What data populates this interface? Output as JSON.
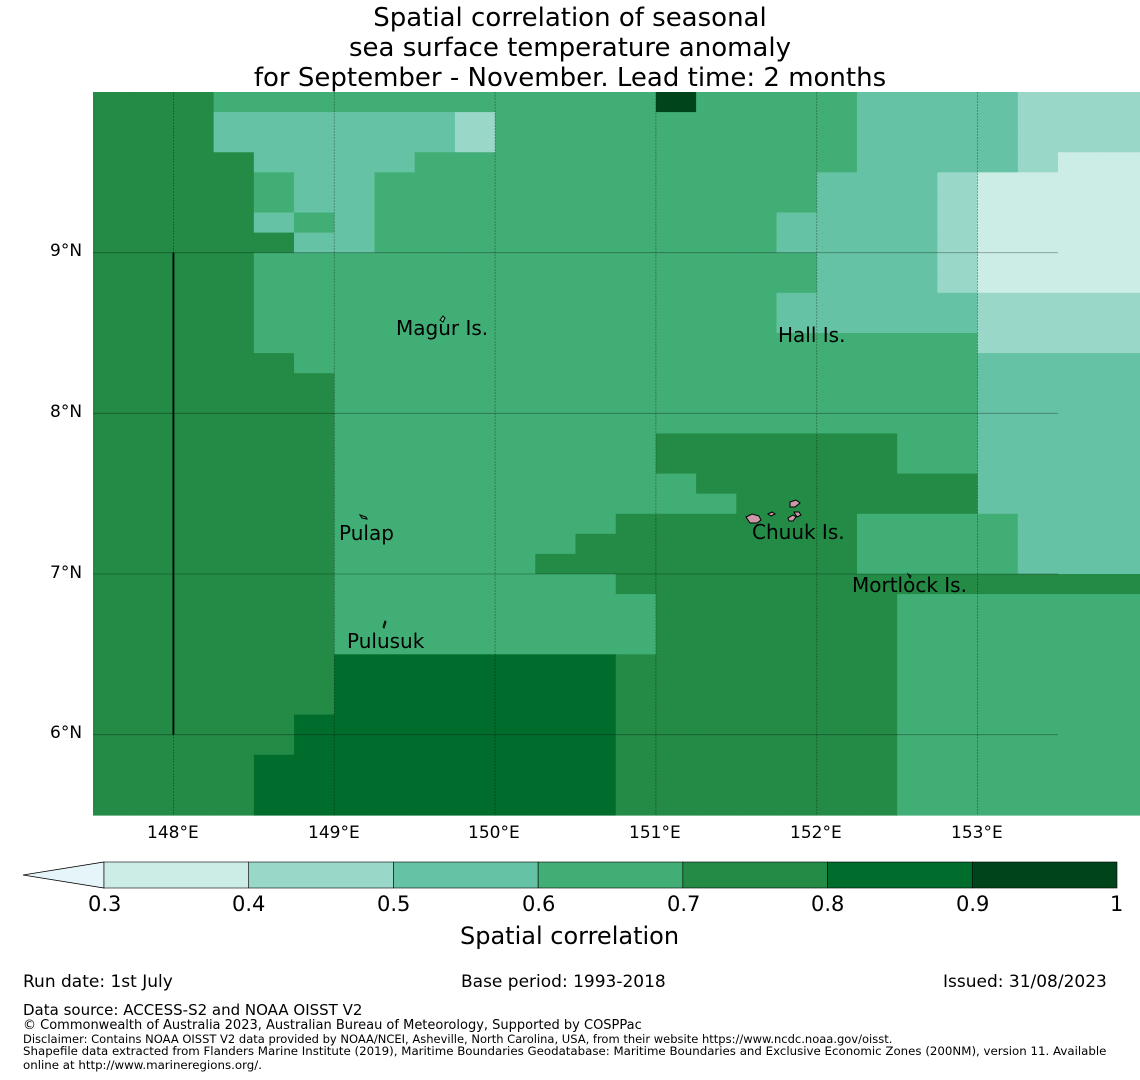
{
  "title": {
    "line1": "Spatial correlation of seasonal",
    "line2": "sea surface temperature anomaly",
    "line3": "for September - November. Lead time: 2 months"
  },
  "map": {
    "lon_range": [
      147.5,
      153.5
    ],
    "lat_range": [
      5.5,
      10.0
    ],
    "x_ticks": [
      "148°E",
      "149°E",
      "150°E",
      "151°E",
      "152°E",
      "153°E"
    ],
    "y_ticks": [
      "9°N",
      "8°N",
      "7°N",
      "6°N"
    ],
    "grid_lons": [
      148,
      149,
      150,
      151,
      152,
      153
    ],
    "grid_lats": [
      9,
      8,
      7,
      6
    ],
    "grid_cell_deg": 0.25,
    "correlation_grid": [
      "5554444444444474444333322222",
      "5553333332444444444333322222",
      "5553333332444444444333322222",
      "5555333344444444444333321111",
      "5555433444444444443332111111",
      "5555433444444444443332111111",
      "5555343444444444433332111111",
      "5555533444444444433332111111",
      "5555444444444444443332111111",
      "5555444444444444443332111111",
      "5555444444444444433333222222",
      "5555444444444444433333222222",
      "5555444444444444444444222222",
      "5555544444444444444444333332",
      "5555554444444444444444333333",
      "5555554444444444444444333333",
      "5555554444444444444444333333",
      "5555554444444455555544333333",
      "5555554444444455555544333333",
      "5555554444444445555555333333",
      "5555554444444444555555333333",
      "5555554444444555555444433333",
      "5555554444445555555444433333",
      "5555554444455555555444433333",
      "5555554444444555555555555555",
      "5555554444444455555544444444",
      "5555554444444455555544444444",
      "5555554444444455555544444444",
      "5555556666666555555544444444",
      "5555556666666555555544444444",
      "5555556666666555555544444444",
      "5555566666666555555544444444",
      "5555566666666555555544444444",
      "5555666666666555555544444444",
      "5555666666666555555544444444",
      "5555666666666555555544444444"
    ],
    "grid_note": "",
    "islands": [
      {
        "name": "Magur Is.",
        "lon": 149.55,
        "lat": 8.55
      },
      {
        "name": "Hall Is.",
        "lon": 151.85,
        "lat": 8.5
      },
      {
        "name": "Pulap",
        "lon": 149.2,
        "lat": 7.25
      },
      {
        "name": "Chuuk Is.",
        "lon": 151.8,
        "lat": 7.3
      },
      {
        "name": "Mortlock Is.",
        "lon": 152.6,
        "lat": 6.92
      },
      {
        "name": "Pulusuk",
        "lon": 149.3,
        "lat": 6.6
      }
    ],
    "boundary_line": {
      "lon": 148.0,
      "lat_from": 9.0,
      "lat_to": 6.0
    }
  },
  "colorbar": {
    "label": "Spatial correlation",
    "ticks": [
      "0.3",
      "0.4",
      "0.5",
      "0.6",
      "0.7",
      "0.8",
      "0.9",
      "1"
    ],
    "bins": [
      {
        "range": "<0.3",
        "color": "#e5f5f9"
      },
      {
        "range": "0.3-0.4",
        "color": "#ccece6"
      },
      {
        "range": "0.4-0.5",
        "color": "#99d8c9"
      },
      {
        "range": "0.5-0.6",
        "color": "#66c2a4"
      },
      {
        "range": "0.6-0.7",
        "color": "#41ae76"
      },
      {
        "range": "0.7-0.8",
        "color": "#238b45"
      },
      {
        "range": "0.8-0.9",
        "color": "#006d2c"
      },
      {
        "range": "0.9-1",
        "color": "#00441b"
      }
    ]
  },
  "footer": {
    "run_date": "Run date: 1st July",
    "base_period": "Base period: 1993-2018",
    "issued": "Issued: 31/08/2023",
    "data_source": "Data source: ACCESS-S2 and NOAA OISST V2",
    "copyright": "© Commonwealth of Australia 2023, Australian Bureau of Meteorology, Supported by COSPPac",
    "disclaimer": "Disclaimer: Contains NOAA OISST V2 data provided by NOAA/NCEI, Asheville, North Carolina, USA, from their website https://www.ncdc.noaa.gov/oisst.",
    "shapefile_line1": "Shapefile data extracted from Flanders Marine Institute (2019), Maritime Boundaries Geodatabase: Maritime Boundaries and Exclusive Economic Zones (200NM), version 11. Available",
    "shapefile_line2": "online at http://www.marineregions.org/."
  }
}
